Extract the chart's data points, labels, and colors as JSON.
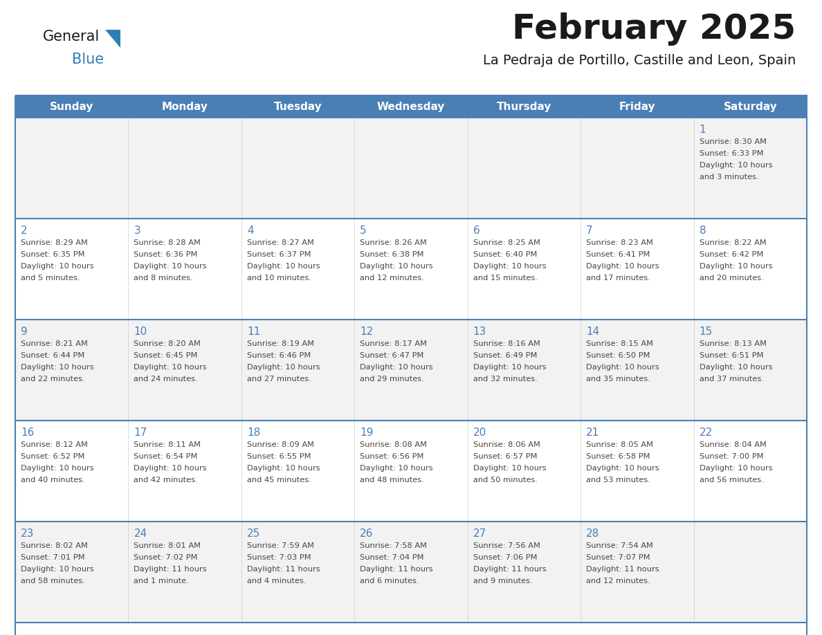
{
  "title": "February 2025",
  "subtitle": "La Pedraja de Portillo, Castille and Leon, Spain",
  "header_bg": "#4a7fb5",
  "header_text_color": "#ffffff",
  "cell_bg_odd": "#f2f2f2",
  "cell_bg_even": "#ffffff",
  "day_number_color": "#4a7fb5",
  "text_color": "#444444",
  "line_color": "#4a7fb5",
  "days_of_week": [
    "Sunday",
    "Monday",
    "Tuesday",
    "Wednesday",
    "Thursday",
    "Friday",
    "Saturday"
  ],
  "logo_general_color": "#1a1a1a",
  "logo_blue_color": "#2e7db5",
  "logo_triangle_color": "#2e7db5",
  "title_color": "#1a1a1a",
  "subtitle_color": "#1a1a1a",
  "calendar_data": [
    [
      null,
      null,
      null,
      null,
      null,
      null,
      {
        "day": "1",
        "sunrise": "Sunrise: 8:30 AM",
        "sunset": "Sunset: 6:33 PM",
        "daylight": "Daylight: 10 hours",
        "daylight2": "and 3 minutes."
      }
    ],
    [
      {
        "day": "2",
        "sunrise": "Sunrise: 8:29 AM",
        "sunset": "Sunset: 6:35 PM",
        "daylight": "Daylight: 10 hours",
        "daylight2": "and 5 minutes."
      },
      {
        "day": "3",
        "sunrise": "Sunrise: 8:28 AM",
        "sunset": "Sunset: 6:36 PM",
        "daylight": "Daylight: 10 hours",
        "daylight2": "and 8 minutes."
      },
      {
        "day": "4",
        "sunrise": "Sunrise: 8:27 AM",
        "sunset": "Sunset: 6:37 PM",
        "daylight": "Daylight: 10 hours",
        "daylight2": "and 10 minutes."
      },
      {
        "day": "5",
        "sunrise": "Sunrise: 8:26 AM",
        "sunset": "Sunset: 6:38 PM",
        "daylight": "Daylight: 10 hours",
        "daylight2": "and 12 minutes."
      },
      {
        "day": "6",
        "sunrise": "Sunrise: 8:25 AM",
        "sunset": "Sunset: 6:40 PM",
        "daylight": "Daylight: 10 hours",
        "daylight2": "and 15 minutes."
      },
      {
        "day": "7",
        "sunrise": "Sunrise: 8:23 AM",
        "sunset": "Sunset: 6:41 PM",
        "daylight": "Daylight: 10 hours",
        "daylight2": "and 17 minutes."
      },
      {
        "day": "8",
        "sunrise": "Sunrise: 8:22 AM",
        "sunset": "Sunset: 6:42 PM",
        "daylight": "Daylight: 10 hours",
        "daylight2": "and 20 minutes."
      }
    ],
    [
      {
        "day": "9",
        "sunrise": "Sunrise: 8:21 AM",
        "sunset": "Sunset: 6:44 PM",
        "daylight": "Daylight: 10 hours",
        "daylight2": "and 22 minutes."
      },
      {
        "day": "10",
        "sunrise": "Sunrise: 8:20 AM",
        "sunset": "Sunset: 6:45 PM",
        "daylight": "Daylight: 10 hours",
        "daylight2": "and 24 minutes."
      },
      {
        "day": "11",
        "sunrise": "Sunrise: 8:19 AM",
        "sunset": "Sunset: 6:46 PM",
        "daylight": "Daylight: 10 hours",
        "daylight2": "and 27 minutes."
      },
      {
        "day": "12",
        "sunrise": "Sunrise: 8:17 AM",
        "sunset": "Sunset: 6:47 PM",
        "daylight": "Daylight: 10 hours",
        "daylight2": "and 29 minutes."
      },
      {
        "day": "13",
        "sunrise": "Sunrise: 8:16 AM",
        "sunset": "Sunset: 6:49 PM",
        "daylight": "Daylight: 10 hours",
        "daylight2": "and 32 minutes."
      },
      {
        "day": "14",
        "sunrise": "Sunrise: 8:15 AM",
        "sunset": "Sunset: 6:50 PM",
        "daylight": "Daylight: 10 hours",
        "daylight2": "and 35 minutes."
      },
      {
        "day": "15",
        "sunrise": "Sunrise: 8:13 AM",
        "sunset": "Sunset: 6:51 PM",
        "daylight": "Daylight: 10 hours",
        "daylight2": "and 37 minutes."
      }
    ],
    [
      {
        "day": "16",
        "sunrise": "Sunrise: 8:12 AM",
        "sunset": "Sunset: 6:52 PM",
        "daylight": "Daylight: 10 hours",
        "daylight2": "and 40 minutes."
      },
      {
        "day": "17",
        "sunrise": "Sunrise: 8:11 AM",
        "sunset": "Sunset: 6:54 PM",
        "daylight": "Daylight: 10 hours",
        "daylight2": "and 42 minutes."
      },
      {
        "day": "18",
        "sunrise": "Sunrise: 8:09 AM",
        "sunset": "Sunset: 6:55 PM",
        "daylight": "Daylight: 10 hours",
        "daylight2": "and 45 minutes."
      },
      {
        "day": "19",
        "sunrise": "Sunrise: 8:08 AM",
        "sunset": "Sunset: 6:56 PM",
        "daylight": "Daylight: 10 hours",
        "daylight2": "and 48 minutes."
      },
      {
        "day": "20",
        "sunrise": "Sunrise: 8:06 AM",
        "sunset": "Sunset: 6:57 PM",
        "daylight": "Daylight: 10 hours",
        "daylight2": "and 50 minutes."
      },
      {
        "day": "21",
        "sunrise": "Sunrise: 8:05 AM",
        "sunset": "Sunset: 6:58 PM",
        "daylight": "Daylight: 10 hours",
        "daylight2": "and 53 minutes."
      },
      {
        "day": "22",
        "sunrise": "Sunrise: 8:04 AM",
        "sunset": "Sunset: 7:00 PM",
        "daylight": "Daylight: 10 hours",
        "daylight2": "and 56 minutes."
      }
    ],
    [
      {
        "day": "23",
        "sunrise": "Sunrise: 8:02 AM",
        "sunset": "Sunset: 7:01 PM",
        "daylight": "Daylight: 10 hours",
        "daylight2": "and 58 minutes."
      },
      {
        "day": "24",
        "sunrise": "Sunrise: 8:01 AM",
        "sunset": "Sunset: 7:02 PM",
        "daylight": "Daylight: 11 hours",
        "daylight2": "and 1 minute."
      },
      {
        "day": "25",
        "sunrise": "Sunrise: 7:59 AM",
        "sunset": "Sunset: 7:03 PM",
        "daylight": "Daylight: 11 hours",
        "daylight2": "and 4 minutes."
      },
      {
        "day": "26",
        "sunrise": "Sunrise: 7:58 AM",
        "sunset": "Sunset: 7:04 PM",
        "daylight": "Daylight: 11 hours",
        "daylight2": "and 6 minutes."
      },
      {
        "day": "27",
        "sunrise": "Sunrise: 7:56 AM",
        "sunset": "Sunset: 7:06 PM",
        "daylight": "Daylight: 11 hours",
        "daylight2": "and 9 minutes."
      },
      {
        "day": "28",
        "sunrise": "Sunrise: 7:54 AM",
        "sunset": "Sunset: 7:07 PM",
        "daylight": "Daylight: 11 hours",
        "daylight2": "and 12 minutes."
      },
      null
    ]
  ]
}
